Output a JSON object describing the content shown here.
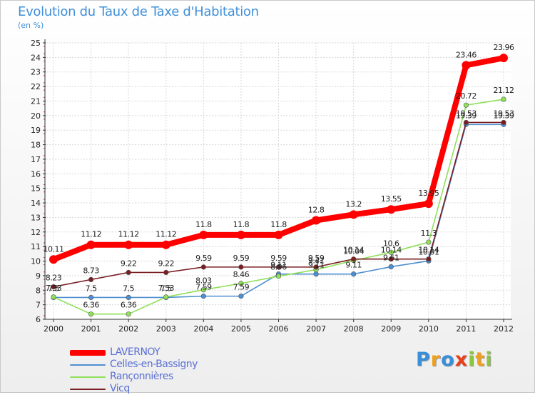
{
  "title": "Evolution du Taux de Taxe d'Habitation",
  "subtitle": "(en %)",
  "logo": {
    "text": "Proxiti",
    "letters": [
      {
        "ch": "P",
        "color": "#3a8fd9"
      },
      {
        "ch": "r",
        "color": "#f0a020"
      },
      {
        "ch": "o",
        "color": "#3a8fd9"
      },
      {
        "ch": "x",
        "color": "#e8401c"
      },
      {
        "ch": "i",
        "color": "#8cc63f"
      },
      {
        "ch": "t",
        "color": "#f0a020"
      },
      {
        "ch": "i",
        "color": "#8cc63f"
      }
    ]
  },
  "chart_data": {
    "type": "line",
    "title": "Evolution du Taux de Taxe d'Habitation",
    "subtitle": "(en %)",
    "x": [
      "2000",
      "2001",
      "2002",
      "2003",
      "2004",
      "2005",
      "2006",
      "2007",
      "2008",
      "2009",
      "2010",
      "2011",
      "2012"
    ],
    "ylim": [
      6,
      25
    ],
    "yticks": [
      "6",
      "7",
      "8",
      "9",
      "10",
      "11",
      "12",
      "13",
      "14",
      "15",
      "16",
      "17",
      "18",
      "19",
      "20",
      "21",
      "22",
      "23",
      "24",
      "25"
    ],
    "grid": true,
    "legend_position": "bottom-left",
    "series": [
      {
        "name": "LAVERNOY",
        "color": "#ff0000",
        "values": [
          10.11,
          11.12,
          11.12,
          11.12,
          11.8,
          11.8,
          11.8,
          12.8,
          13.2,
          13.55,
          13.95,
          23.46,
          23.96
        ],
        "labels": [
          "10.11",
          "11.12",
          "11.12",
          "11.12",
          "11.8",
          "11.8",
          "11.8",
          "12.8",
          "13.2",
          "13.55",
          "13.95",
          "23.46",
          "23.96"
        ]
      },
      {
        "name": "Celles-en-Bassigny",
        "color": "#4f8fd0",
        "values": [
          7.5,
          7.5,
          7.5,
          7.5,
          7.59,
          7.59,
          9.11,
          9.11,
          9.11,
          9.61,
          10.01,
          19.39,
          19.39
        ],
        "labels": [
          "7.5",
          "7.5",
          "7.5",
          "7.5",
          "7.59",
          "7.59",
          "9.11",
          "9.11",
          "9.11",
          "9.61",
          "10.01",
          "19.39",
          "19.39"
        ]
      },
      {
        "name": "Rançonnières",
        "color": "#8fe05a",
        "values": [
          7.53,
          6.36,
          6.36,
          7.53,
          8.03,
          8.46,
          8.96,
          9.41,
          10.04,
          10.6,
          11.3,
          20.72,
          21.12
        ],
        "labels": [
          "7.53",
          "6.36",
          "6.36",
          "7.53",
          "8.03",
          "8.46",
          "8.96",
          "9.41",
          "10.04",
          "10.6",
          "11.3",
          "20.72",
          "21.12"
        ]
      },
      {
        "name": "Vicq",
        "color": "#7a1e24",
        "values": [
          8.23,
          8.73,
          9.22,
          9.22,
          9.59,
          9.59,
          9.59,
          9.59,
          10.14,
          10.14,
          10.14,
          19.53,
          19.53
        ],
        "labels": [
          "8.23",
          "8.73",
          "9.22",
          "9.22",
          "9.59",
          "9.59",
          "9.59",
          "9.59",
          "10.14",
          "10.14",
          "10.14",
          "19.53",
          "19.53"
        ]
      }
    ]
  }
}
